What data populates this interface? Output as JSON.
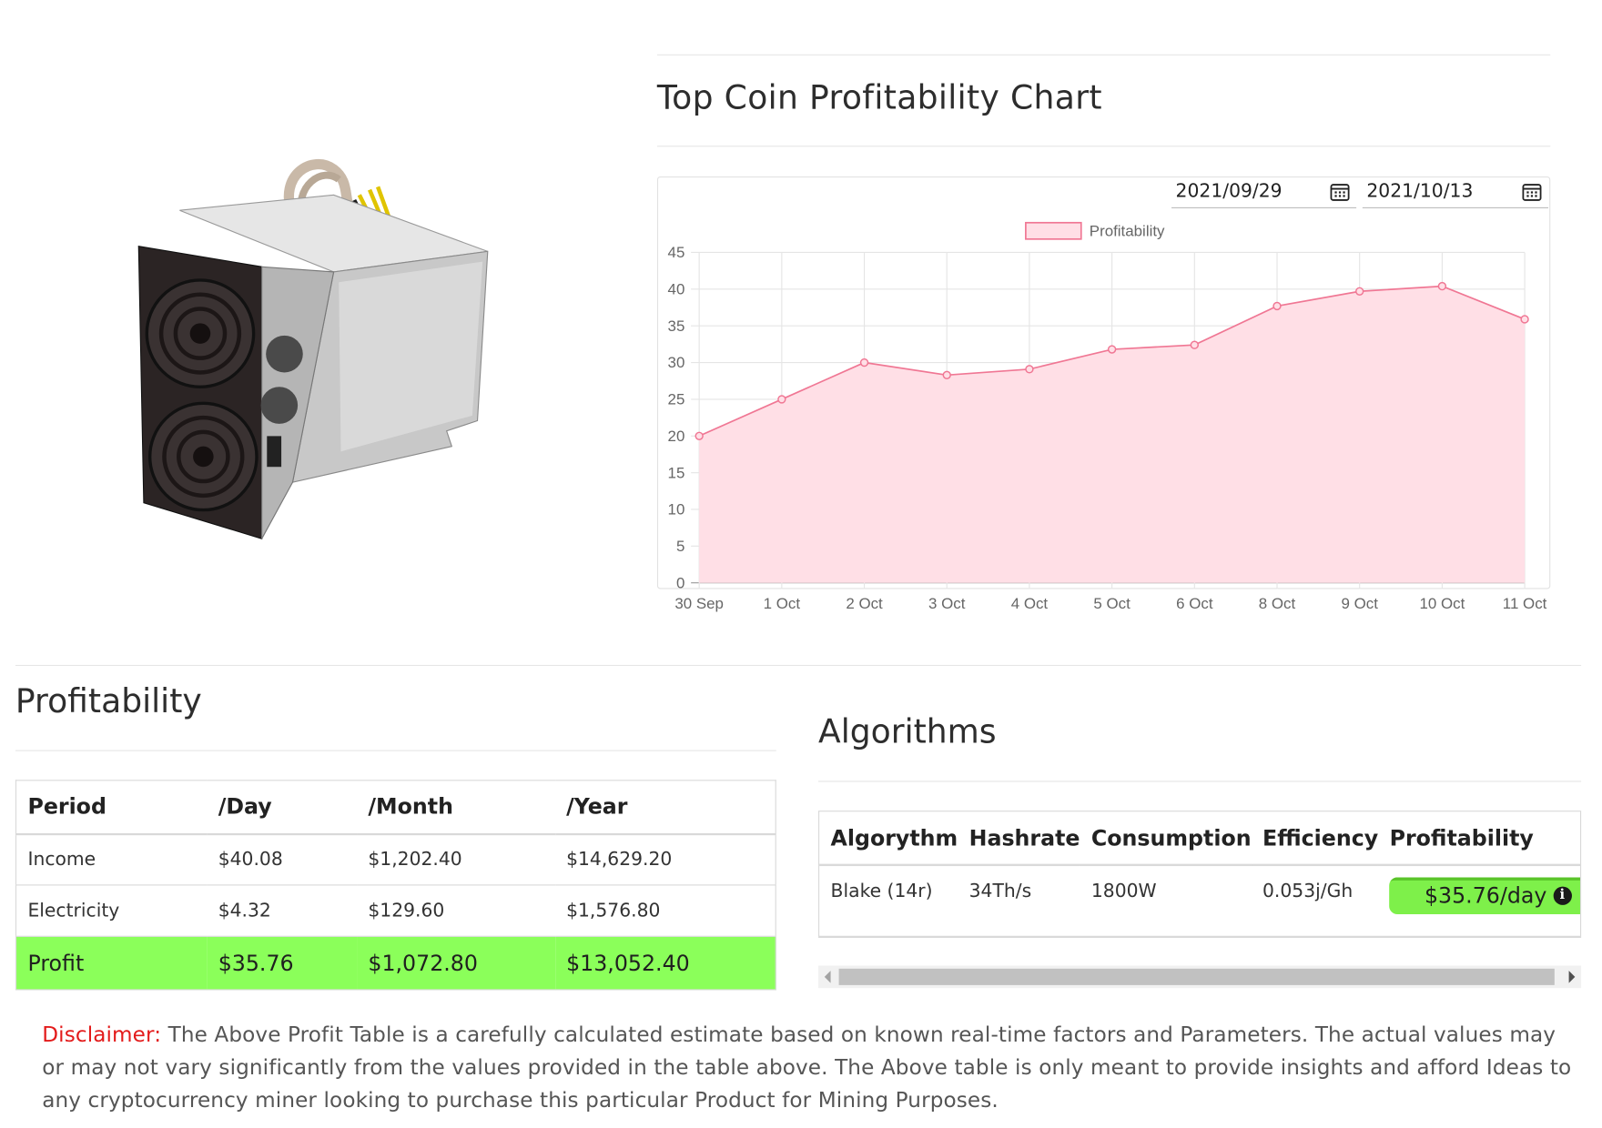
{
  "chart_section": {
    "title": "Top Coin Profitability Chart",
    "start_date": "2021/09/29",
    "end_date": "2021/10/13",
    "calendar_icon": "calendar-icon"
  },
  "chart_data": {
    "type": "area",
    "title": "",
    "xlabel": "",
    "ylabel": "",
    "categories": [
      "30 Sep",
      "1 Oct",
      "2 Oct",
      "3 Oct",
      "4 Oct",
      "5 Oct",
      "6 Oct",
      "8 Oct",
      "9 Oct",
      "10 Oct",
      "11 Oct"
    ],
    "series": [
      {
        "name": "Profitability",
        "values": [
          20,
          25,
          30,
          28.3,
          29.1,
          31.8,
          32.4,
          37.7,
          39.7,
          40.4,
          35.9
        ]
      }
    ],
    "ylim": [
      0,
      45
    ],
    "yticks": [
      0,
      5,
      10,
      15,
      20,
      25,
      30,
      35,
      40,
      45
    ],
    "grid": true,
    "legend_position": "top",
    "line_color": "#f07794",
    "fill_color": "#ffdfe6"
  },
  "profitability": {
    "title": "Profitability",
    "headers": [
      "Period",
      "/Day",
      "/Month",
      "/Year"
    ],
    "rows": [
      {
        "period": "Income",
        "day": "$40.08",
        "month": "$1,202.40",
        "year": "$14,629.20"
      },
      {
        "period": "Electricity",
        "day": "$4.32",
        "month": "$129.60",
        "year": "$1,576.80"
      },
      {
        "period": "Profit",
        "day": "$35.76",
        "month": "$1,072.80",
        "year": "$13,052.40"
      }
    ],
    "profit_row_color": "#8bff5a"
  },
  "algorithms": {
    "title": "Algorithms",
    "headers": [
      "Algorythm",
      "Hashrate",
      "Consumption",
      "Efficiency",
      "Profitability"
    ],
    "rows": [
      {
        "algorithm": "Blake (14r)",
        "hashrate": "34Th/s",
        "consumption": "1800W",
        "efficiency": "0.053j/Gh",
        "profitability": "$35.76/day"
      }
    ],
    "badge_color": "#7ef04a"
  },
  "disclaimer": {
    "label": "Disclaimer:",
    "text": " The Above Profit Table is a carefully calculated estimate based on known real-time factors and Parameters. The actual values may or may not vary significantly from the values provided in the table above. The Above table is only meant to provide insights and afford Ideas to any cryptocurrency miner looking to purchase this particular Product for Mining Purposes.",
    "label_color": "#e31b1b"
  }
}
